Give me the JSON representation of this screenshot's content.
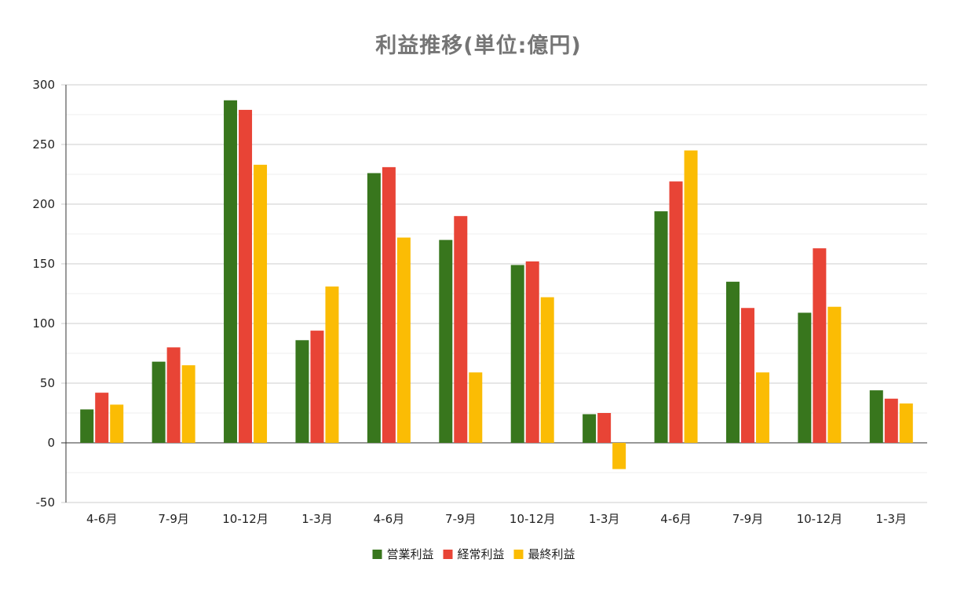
{
  "chart_data": {
    "type": "bar",
    "title": "利益推移(単位:億円)",
    "xlabel": "",
    "ylabel": "",
    "categories": [
      "4-6月",
      "7-9月",
      "10-12月",
      "1-3月",
      "4-6月",
      "7-9月",
      "10-12月",
      "1-3月",
      "4-6月",
      "7-9月",
      "10-12月",
      "1-3月"
    ],
    "series": [
      {
        "name": "営業利益",
        "color": "#38761d",
        "values": [
          28,
          68,
          287,
          86,
          226,
          170,
          149,
          24,
          194,
          135,
          109,
          44
        ]
      },
      {
        "name": "経常利益",
        "color": "#e84436",
        "values": [
          42,
          80,
          279,
          94,
          231,
          190,
          152,
          25,
          219,
          113,
          163,
          37
        ]
      },
      {
        "name": "最終利益",
        "color": "#fbbc04",
        "values": [
          32,
          65,
          233,
          131,
          172,
          59,
          122,
          -22,
          245,
          59,
          114,
          33
        ]
      }
    ],
    "ylim": [
      -50,
      300
    ],
    "yticks": [
      -50,
      0,
      50,
      100,
      150,
      200,
      250,
      300
    ],
    "grid": true,
    "minor_grid": true,
    "legend_position": "bottom"
  }
}
